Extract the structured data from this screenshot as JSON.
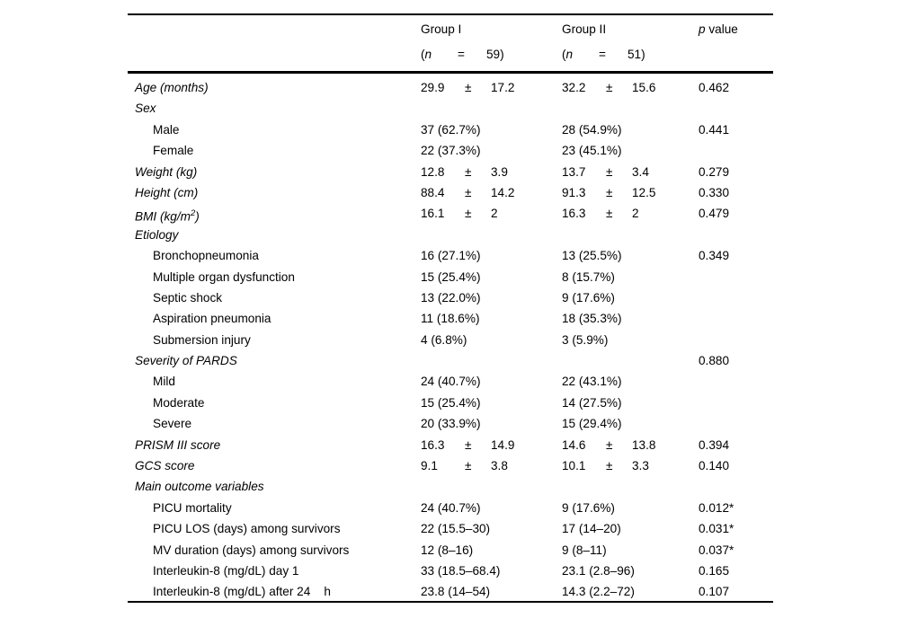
{
  "header": {
    "group1": {
      "title": "Group I",
      "paren": "(",
      "n": "n",
      "eq": "=",
      "count": "59)"
    },
    "group2": {
      "title": "Group II",
      "paren": "(",
      "n": "n",
      "eq": "=",
      "count": "51)"
    },
    "p_italic": "p",
    "p_rest": " value"
  },
  "pm_symbol": "±",
  "rows": [
    {
      "label": "Age (months)",
      "style": "category",
      "g1": {
        "mean": "29.9",
        "sd": "17.2"
      },
      "g2": {
        "mean": "32.2",
        "sd": "15.6"
      },
      "p": "0.462"
    },
    {
      "label": "Sex",
      "style": "category"
    },
    {
      "label": "Male",
      "style": "item",
      "g1": {
        "text": "37 (62.7%)"
      },
      "g2": {
        "text": "28 (54.9%)"
      },
      "p": "0.441"
    },
    {
      "label": "Female",
      "style": "item",
      "g1": {
        "text": "22 (37.3%)"
      },
      "g2": {
        "text": "23 (45.1%)"
      }
    },
    {
      "label": "Weight (kg)",
      "style": "category",
      "g1": {
        "mean": "12.8",
        "sd": "3.9"
      },
      "g2": {
        "mean": "13.7",
        "sd": "3.4"
      },
      "p": "0.279"
    },
    {
      "label": "Height (cm)",
      "style": "category",
      "g1": {
        "mean": "88.4",
        "sd": "14.2"
      },
      "g2": {
        "mean": "91.3",
        "sd": "12.5"
      },
      "p": "0.330"
    },
    {
      "label": "BMI (kg/m",
      "sup": "2",
      "suffix": ")",
      "style": "category",
      "g1": {
        "mean": "16.1",
        "sd": "2"
      },
      "g2": {
        "mean": "16.3",
        "sd": "2"
      },
      "p": "0.479"
    },
    {
      "label": "Etiology",
      "style": "category"
    },
    {
      "label": "Bronchopneumonia",
      "style": "item",
      "g1": {
        "text": "16 (27.1%)"
      },
      "g2": {
        "text": "13 (25.5%)"
      },
      "p": "0.349"
    },
    {
      "label": "Multiple organ dysfunction",
      "style": "item",
      "g1": {
        "text": "15 (25.4%)"
      },
      "g2": {
        "text": "8 (15.7%)"
      }
    },
    {
      "label": "Septic shock",
      "style": "item",
      "g1": {
        "text": "13 (22.0%)"
      },
      "g2": {
        "text": "9 (17.6%)"
      }
    },
    {
      "label": "Aspiration pneumonia",
      "style": "item",
      "g1": {
        "text": "11 (18.6%)"
      },
      "g2": {
        "text": "18 (35.3%)"
      }
    },
    {
      "label": "Submersion injury",
      "style": "item",
      "g1": {
        "text": "4 (6.8%)"
      },
      "g2": {
        "text": "3 (5.9%)"
      }
    },
    {
      "label": "Severity of PARDS",
      "style": "category",
      "p": "0.880"
    },
    {
      "label": "Mild",
      "style": "item",
      "g1": {
        "text": "24 (40.7%)"
      },
      "g2": {
        "text": "22 (43.1%)"
      }
    },
    {
      "label": "Moderate",
      "style": "item",
      "g1": {
        "text": "15 (25.4%)"
      },
      "g2": {
        "text": "14 (27.5%)"
      }
    },
    {
      "label": "Severe",
      "style": "item",
      "g1": {
        "text": "20 (33.9%)"
      },
      "g2": {
        "text": "15 (29.4%)"
      }
    },
    {
      "label": "PRISM III score",
      "style": "category",
      "g1": {
        "mean": "16.3",
        "sd": "14.9"
      },
      "g2": {
        "mean": "14.6",
        "sd": "13.8"
      },
      "p": "0.394"
    },
    {
      "label": "GCS score",
      "style": "category",
      "g1": {
        "mean": "9.1",
        "sd": "3.8"
      },
      "g2": {
        "mean": "10.1",
        "sd": "3.3"
      },
      "p": "0.140"
    },
    {
      "label": "Main outcome variables",
      "style": "category"
    },
    {
      "label": "PICU mortality",
      "style": "item",
      "g1": {
        "text": "24 (40.7%)"
      },
      "g2": {
        "text": "9 (17.6%)"
      },
      "p": "0.012*"
    },
    {
      "label": "PICU LOS (days) among survivors",
      "style": "item",
      "g1": {
        "text": "22 (15.5–30)"
      },
      "g2": {
        "text": "17 (14–20)"
      },
      "p": "0.031*"
    },
    {
      "label": "MV duration (days) among survivors",
      "style": "item",
      "g1": {
        "text": "12 (8–16)"
      },
      "g2": {
        "text": "9 (8–11)"
      },
      "p": "0.037*"
    },
    {
      "label": "Interleukin-8 (mg/dL) day 1",
      "style": "item",
      "g1": {
        "text": "33 (18.5–68.4)"
      },
      "g2": {
        "text": "23.1 (2.8–96)"
      },
      "p": "0.165"
    },
    {
      "label": "Interleukin-8 (mg/dL) after 24    h",
      "style": "item",
      "g1": {
        "text": "23.8 (14–54)"
      },
      "g2": {
        "text": "14.3 (2.2–72)"
      },
      "p": "0.107"
    }
  ]
}
